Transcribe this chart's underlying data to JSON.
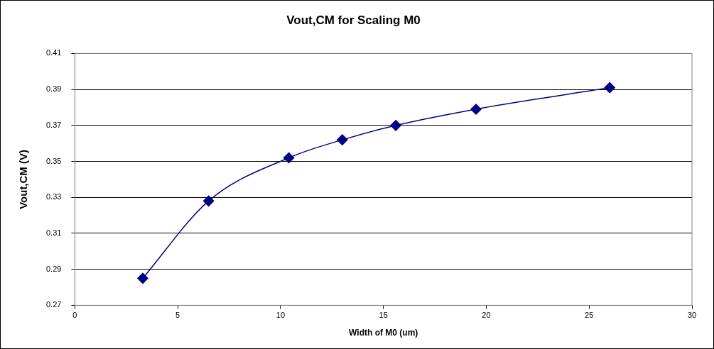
{
  "chart_data": {
    "type": "line",
    "title": "Vout,CM for Scaling M0",
    "xlabel": "Width of M0 (um)",
    "ylabel": "Vout,CM (V)",
    "x": [
      3.3,
      6.5,
      10.4,
      13,
      15.6,
      19.5,
      26
    ],
    "series": [
      {
        "color": "#000080",
        "values": [
          0.285,
          0.328,
          0.352,
          0.362,
          0.37,
          0.379,
          0.391
        ]
      }
    ],
    "xlim": [
      0,
      30
    ],
    "xticks": [
      0,
      5,
      10,
      15,
      20,
      25,
      30
    ],
    "ylim": [
      0.27,
      0.41
    ],
    "yticks": [
      0.27,
      0.29,
      0.31,
      0.33,
      0.35,
      0.37,
      0.39,
      0.41
    ],
    "grid": "y",
    "legend": false,
    "marker": "diamond",
    "line_style": "solid"
  }
}
